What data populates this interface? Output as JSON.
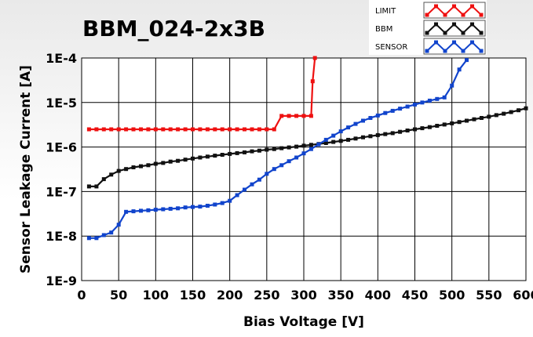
{
  "chart_data": {
    "type": "line",
    "title": "BBM_024-2x3B",
    "xlabel": "Bias Voltage [V]",
    "ylabel": "Sensor Leakage Current [A]",
    "xlim": [
      0,
      600
    ],
    "ylim": [
      1e-09,
      0.0001
    ],
    "y_scale": "log",
    "grid": true,
    "legend_position": "top-right",
    "x_ticks": [
      "0",
      "50",
      "100",
      "150",
      "200",
      "250",
      "300",
      "350",
      "400",
      "450",
      "500",
      "550",
      "600"
    ],
    "y_ticks": [
      "1E-9",
      "1E-8",
      "1E-7",
      "1E-6",
      "1E-5",
      "1E-4"
    ],
    "series": [
      {
        "name": "LIMIT",
        "color": "#ee1111",
        "x": [
          10,
          20,
          30,
          40,
          50,
          60,
          70,
          80,
          90,
          100,
          110,
          120,
          130,
          140,
          150,
          160,
          170,
          180,
          190,
          200,
          210,
          220,
          230,
          240,
          250,
          260,
          270,
          280,
          290,
          300,
          310,
          312,
          315
        ],
        "y": [
          2.5e-06,
          2.5e-06,
          2.5e-06,
          2.5e-06,
          2.5e-06,
          2.5e-06,
          2.5e-06,
          2.5e-06,
          2.5e-06,
          2.5e-06,
          2.5e-06,
          2.5e-06,
          2.5e-06,
          2.5e-06,
          2.5e-06,
          2.5e-06,
          2.5e-06,
          2.5e-06,
          2.5e-06,
          2.5e-06,
          2.5e-06,
          2.5e-06,
          2.5e-06,
          2.5e-06,
          2.5e-06,
          2.5e-06,
          5e-06,
          5e-06,
          5e-06,
          5e-06,
          5e-06,
          3e-05,
          0.0001
        ]
      },
      {
        "name": "BBM",
        "color": "#111111",
        "x": [
          10,
          20,
          30,
          40,
          50,
          60,
          70,
          80,
          90,
          100,
          110,
          120,
          130,
          140,
          150,
          160,
          170,
          180,
          190,
          200,
          210,
          220,
          230,
          240,
          250,
          260,
          270,
          280,
          290,
          300,
          310,
          320,
          330,
          340,
          350,
          360,
          370,
          380,
          390,
          400,
          410,
          420,
          430,
          440,
          450,
          460,
          470,
          480,
          490,
          500,
          510,
          520,
          530,
          540,
          550,
          560,
          570,
          580,
          590,
          600
        ],
        "y": [
          1.3e-07,
          1.3e-07,
          1.9e-07,
          2.4e-07,
          2.9e-07,
          3.2e-07,
          3.5e-07,
          3.7e-07,
          3.9e-07,
          4.2e-07,
          4.4e-07,
          4.7e-07,
          4.9e-07,
          5.2e-07,
          5.5e-07,
          5.8e-07,
          6.1e-07,
          6.4e-07,
          6.7e-07,
          7e-07,
          7.3e-07,
          7.6e-07,
          8e-07,
          8.3e-07,
          8.7e-07,
          9e-07,
          9.4e-07,
          9.8e-07,
          1.02e-06,
          1.07e-06,
          1.12e-06,
          1.17e-06,
          1.23e-06,
          1.3e-06,
          1.37e-06,
          1.45e-06,
          1.55e-06,
          1.65e-06,
          1.75e-06,
          1.85e-06,
          1.95e-06,
          2.05e-06,
          2.2e-06,
          2.35e-06,
          2.5e-06,
          2.65e-06,
          2.8e-06,
          3e-06,
          3.2e-06,
          3.4e-06,
          3.65e-06,
          3.9e-06,
          4.2e-06,
          4.5e-06,
          4.8e-06,
          5.2e-06,
          5.6e-06,
          6.1e-06,
          6.7e-06,
          7.4e-06
        ]
      },
      {
        "name": "SENSOR",
        "color": "#1144cc",
        "x": [
          10,
          20,
          30,
          40,
          50,
          60,
          70,
          80,
          90,
          100,
          110,
          120,
          130,
          140,
          150,
          160,
          170,
          180,
          190,
          200,
          210,
          220,
          230,
          240,
          250,
          260,
          270,
          280,
          290,
          300,
          310,
          320,
          330,
          340,
          350,
          360,
          370,
          380,
          390,
          400,
          410,
          420,
          430,
          440,
          450,
          460,
          470,
          480,
          490,
          500,
          510,
          520
        ],
        "y": [
          9e-09,
          9e-09,
          1.05e-08,
          1.2e-08,
          1.8e-08,
          3.5e-08,
          3.6e-08,
          3.7e-08,
          3.8e-08,
          3.9e-08,
          4e-08,
          4.1e-08,
          4.2e-08,
          4.4e-08,
          4.5e-08,
          4.6e-08,
          4.8e-08,
          5.1e-08,
          5.5e-08,
          6.2e-08,
          8.3e-08,
          1.1e-07,
          1.45e-07,
          1.85e-07,
          2.5e-07,
          3.2e-07,
          3.9e-07,
          4.8e-07,
          5.8e-07,
          7.2e-07,
          9e-07,
          1.15e-06,
          1.45e-06,
          1.8e-06,
          2.25e-06,
          2.75e-06,
          3.3e-06,
          3.9e-06,
          4.5e-06,
          5.1e-06,
          5.8e-06,
          6.5e-06,
          7.3e-06,
          8.1e-06,
          9e-06,
          1e-05,
          1.1e-05,
          1.2e-05,
          1.3e-05,
          2.4e-05,
          5.5e-05,
          9e-05
        ]
      }
    ]
  }
}
